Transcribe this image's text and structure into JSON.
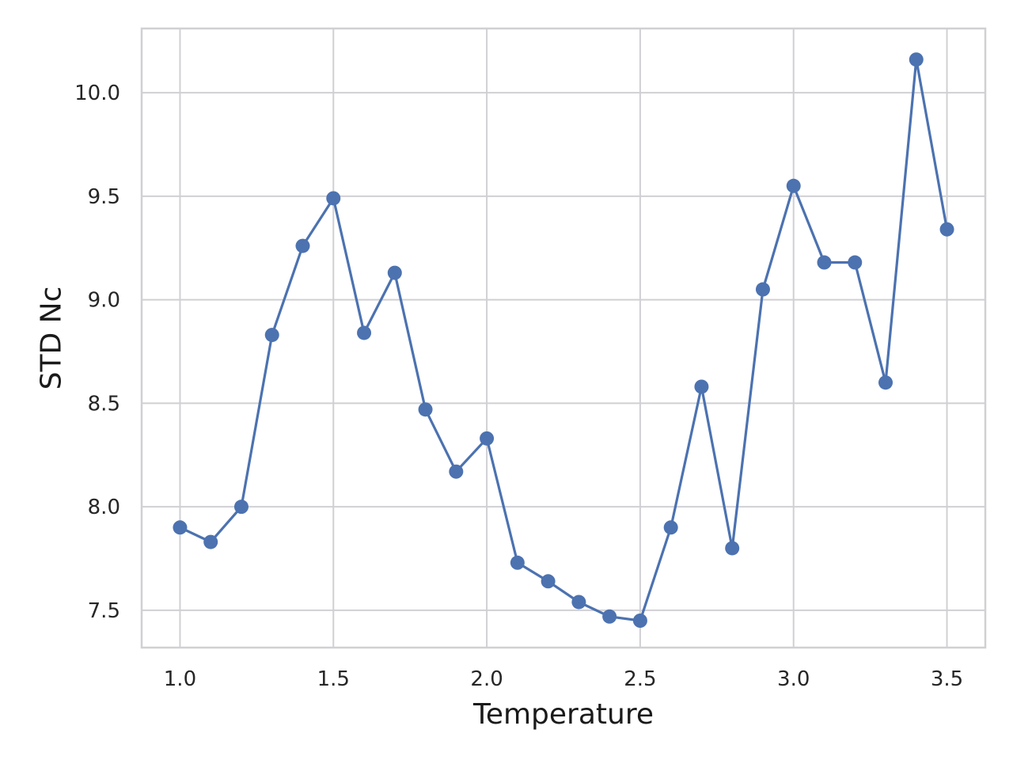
{
  "chart_data": {
    "type": "line",
    "xlabel": "Temperature",
    "ylabel": "STD Nc",
    "xlim": [
      0.875,
      3.625
    ],
    "ylim": [
      7.32,
      10.31
    ],
    "grid": true,
    "x_ticks": [
      1.0,
      1.5,
      2.0,
      2.5,
      3.0,
      3.5
    ],
    "x_tick_labels": [
      "1.0",
      "1.5",
      "2.0",
      "2.5",
      "3.0",
      "3.5"
    ],
    "y_ticks": [
      7.5,
      8.0,
      8.5,
      9.0,
      9.5,
      10.0
    ],
    "y_tick_labels": [
      "7.5",
      "8.0",
      "8.5",
      "9.0",
      "9.5",
      "10.0"
    ],
    "series": [
      {
        "color": "#4c72b0",
        "marker": "circle",
        "x": [
          1.0,
          1.1,
          1.2,
          1.3,
          1.4,
          1.5,
          1.6,
          1.7,
          1.8,
          1.9,
          2.0,
          2.1,
          2.2,
          2.3,
          2.4,
          2.5,
          2.6,
          2.7,
          2.8,
          2.9,
          3.0,
          3.1,
          3.2,
          3.3,
          3.4,
          3.5
        ],
        "y": [
          7.9,
          7.83,
          8.0,
          8.83,
          9.26,
          9.49,
          8.84,
          9.13,
          8.47,
          8.17,
          8.33,
          7.73,
          7.64,
          7.54,
          7.47,
          7.45,
          7.9,
          8.58,
          7.8,
          9.05,
          9.55,
          9.18,
          9.18,
          8.6,
          10.16,
          9.34
        ]
      }
    ]
  }
}
